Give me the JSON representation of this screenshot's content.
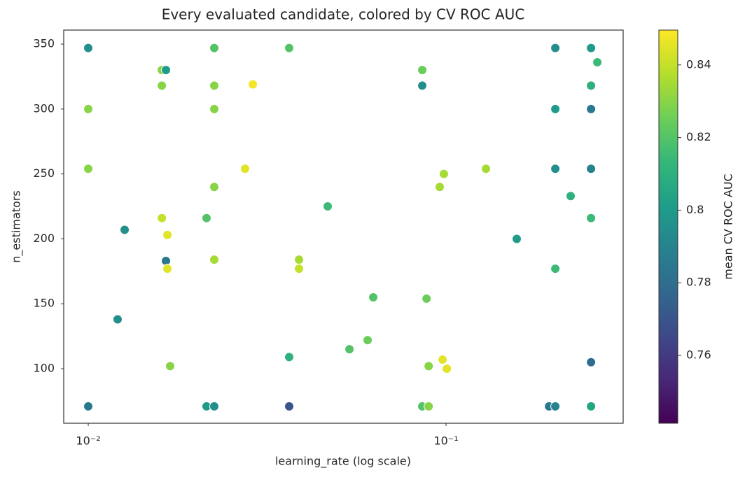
{
  "chart_data": {
    "type": "scatter",
    "title": "Every evaluated candidate, colored by CV ROC AUC",
    "x_label": "learning_rate (log scale)",
    "y_label": "n_estimators",
    "xscale": "log",
    "xlim": [
      0.00854,
      0.3126
    ],
    "xticks": [
      {
        "value": 0.01,
        "label": "10⁻²"
      },
      {
        "value": 0.1,
        "label": "10⁻¹"
      }
    ],
    "ylim": [
      58.0,
      360.8
    ],
    "yticks": [
      100,
      150,
      200,
      250,
      300,
      350
    ],
    "colormap": "viridis",
    "colorbar_label": "mean CV ROC AUC",
    "clim": [
      0.7413,
      0.8496
    ],
    "cticks": [
      0.76,
      0.78,
      0.8,
      0.82,
      0.84
    ],
    "x": [
      0.01,
      0.01,
      0.01,
      0.01,
      0.01208,
      0.01264,
      0.01606,
      0.01649,
      0.01606,
      0.01606,
      0.01664,
      0.01649,
      0.01664,
      0.01694,
      0.02141,
      0.02141,
      0.0225,
      0.0225,
      0.0225,
      0.0225,
      0.0225,
      0.0225,
      0.02744,
      0.02884,
      0.03644,
      0.03644,
      0.03644,
      0.03882,
      0.03882,
      0.04669,
      0.0537,
      0.06037,
      0.0626,
      0.0858,
      0.0858,
      0.0858,
      0.0882,
      0.0894,
      0.0894,
      0.096,
      0.0978,
      0.0986,
      0.1005,
      0.1293,
      0.1576,
      0.194,
      0.202,
      0.202,
      0.202,
      0.202,
      0.202,
      0.223,
      0.2542,
      0.2542,
      0.2542,
      0.2542,
      0.2542,
      0.2542,
      0.2542,
      0.2647
    ],
    "y": [
      347,
      300,
      254,
      71,
      138,
      207,
      330,
      330,
      318,
      216,
      203,
      183,
      177,
      102,
      216,
      71,
      347,
      318,
      300,
      240,
      184,
      71,
      254,
      319,
      347,
      109,
      71,
      184,
      177,
      225,
      115,
      122,
      155,
      330,
      318,
      71,
      154,
      102,
      71,
      240,
      107,
      250,
      100,
      254,
      200,
      71,
      347,
      300,
      254,
      177,
      71,
      233,
      347,
      318,
      300,
      254,
      216,
      105,
      71,
      336
    ],
    "values": [
      0.795,
      0.83,
      0.83,
      0.785,
      0.795,
      0.795,
      0.83,
      0.8,
      0.83,
      0.84,
      0.845,
      0.785,
      0.845,
      0.83,
      0.82,
      0.8,
      0.82,
      0.83,
      0.83,
      0.83,
      0.835,
      0.795,
      0.845,
      0.848,
      0.82,
      0.81,
      0.77,
      0.835,
      0.84,
      0.815,
      0.82,
      0.825,
      0.82,
      0.825,
      0.795,
      0.82,
      0.825,
      0.83,
      0.83,
      0.835,
      0.845,
      0.835,
      0.845,
      0.835,
      0.8,
      0.785,
      0.795,
      0.8,
      0.795,
      0.815,
      0.79,
      0.81,
      0.8,
      0.81,
      0.785,
      0.79,
      0.815,
      0.78,
      0.805,
      0.815
    ]
  }
}
